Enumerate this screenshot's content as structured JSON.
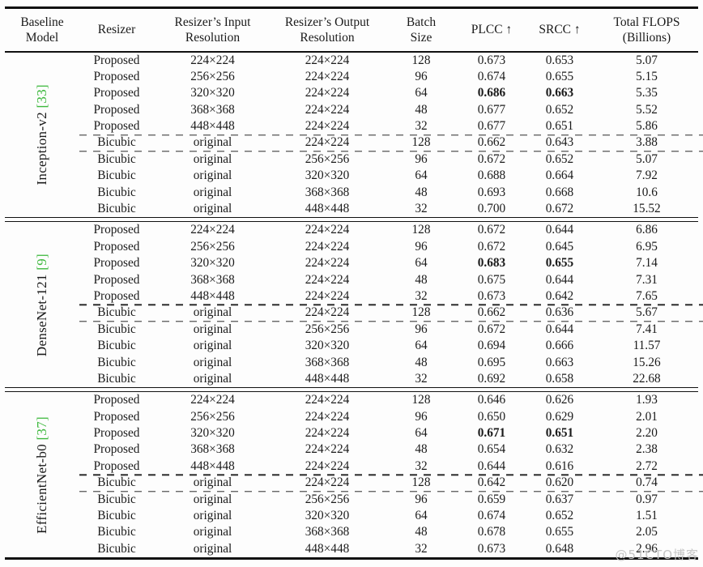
{
  "page": {
    "watermark": "@51CTO博客"
  },
  "table": {
    "header": {
      "baseline": [
        "Baseline",
        "Model"
      ],
      "resizer": [
        "Resizer"
      ],
      "input": [
        "Resizer’s Input",
        "Resolution"
      ],
      "output": [
        "Resizer’s Output",
        "Resolution"
      ],
      "batch": [
        "Batch",
        "Size"
      ],
      "plcc": [
        "PLCC ↑"
      ],
      "srcc": [
        "SRCC ↑"
      ],
      "flops": [
        "Total FLOPS",
        "(Billions)"
      ]
    },
    "accent_citation_color": "#3cb83c",
    "sections": [
      {
        "model": "Inception-v2",
        "citation": "[33]",
        "rows": [
          {
            "resizer": "Proposed",
            "input_res": "224×224",
            "output_res": "224×224",
            "batch": "128",
            "plcc": "0.673",
            "srcc": "0.653",
            "flops": "5.07",
            "bold": false,
            "dashed": false
          },
          {
            "resizer": "Proposed",
            "input_res": "256×256",
            "output_res": "224×224",
            "batch": "96",
            "plcc": "0.674",
            "srcc": "0.655",
            "flops": "5.15",
            "bold": false,
            "dashed": false
          },
          {
            "resizer": "Proposed",
            "input_res": "320×320",
            "output_res": "224×224",
            "batch": "64",
            "plcc": "0.686",
            "srcc": "0.663",
            "flops": "5.35",
            "bold": true,
            "dashed": false
          },
          {
            "resizer": "Proposed",
            "input_res": "368×368",
            "output_res": "224×224",
            "batch": "48",
            "plcc": "0.677",
            "srcc": "0.652",
            "flops": "5.52",
            "bold": false,
            "dashed": false
          },
          {
            "resizer": "Proposed",
            "input_res": "448×448",
            "output_res": "224×224",
            "batch": "32",
            "plcc": "0.677",
            "srcc": "0.651",
            "flops": "5.86",
            "bold": false,
            "dashed": false
          },
          {
            "resizer": "Bicubic",
            "input_res": "original",
            "output_res": "224×224",
            "batch": "128",
            "plcc": "0.662",
            "srcc": "0.643",
            "flops": "3.88",
            "bold": false,
            "dashed": true
          },
          {
            "resizer": "Bicubic",
            "input_res": "original",
            "output_res": "256×256",
            "batch": "96",
            "plcc": "0.672",
            "srcc": "0.652",
            "flops": "5.07",
            "bold": false,
            "dashed": false
          },
          {
            "resizer": "Bicubic",
            "input_res": "original",
            "output_res": "320×320",
            "batch": "64",
            "plcc": "0.688",
            "srcc": "0.664",
            "flops": "7.92",
            "bold": false,
            "dashed": false
          },
          {
            "resizer": "Bicubic",
            "input_res": "original",
            "output_res": "368×368",
            "batch": "48",
            "plcc": "0.693",
            "srcc": "0.668",
            "flops": "10.6",
            "bold": false,
            "dashed": false
          },
          {
            "resizer": "Bicubic",
            "input_res": "original",
            "output_res": "448×448",
            "batch": "32",
            "plcc": "0.700",
            "srcc": "0.672",
            "flops": "15.52",
            "bold": false,
            "dashed": false
          }
        ]
      },
      {
        "model": "DenseNet-121",
        "citation": "[9]",
        "rows": [
          {
            "resizer": "Proposed",
            "input_res": "224×224",
            "output_res": "224×224",
            "batch": "128",
            "plcc": "0.672",
            "srcc": "0.644",
            "flops": "6.86",
            "bold": false,
            "dashed": false
          },
          {
            "resizer": "Proposed",
            "input_res": "256×256",
            "output_res": "224×224",
            "batch": "96",
            "plcc": "0.672",
            "srcc": "0.645",
            "flops": "6.95",
            "bold": false,
            "dashed": false
          },
          {
            "resizer": "Proposed",
            "input_res": "320×320",
            "output_res": "224×224",
            "batch": "64",
            "plcc": "0.683",
            "srcc": "0.655",
            "flops": "7.14",
            "bold": true,
            "dashed": false
          },
          {
            "resizer": "Proposed",
            "input_res": "368×368",
            "output_res": "224×224",
            "batch": "48",
            "plcc": "0.675",
            "srcc": "0.644",
            "flops": "7.31",
            "bold": false,
            "dashed": false
          },
          {
            "resizer": "Proposed",
            "input_res": "448×448",
            "output_res": "224×224",
            "batch": "32",
            "plcc": "0.673",
            "srcc": "0.642",
            "flops": "7.65",
            "bold": false,
            "dashed": false
          },
          {
            "resizer": "Bicubic",
            "input_res": "original",
            "output_res": "224×224",
            "batch": "128",
            "plcc": "0.662",
            "srcc": "0.636",
            "flops": "5.67",
            "bold": false,
            "dashed": true
          },
          {
            "resizer": "Bicubic",
            "input_res": "original",
            "output_res": "256×256",
            "batch": "96",
            "plcc": "0.672",
            "srcc": "0.644",
            "flops": "7.41",
            "bold": false,
            "dashed": false
          },
          {
            "resizer": "Bicubic",
            "input_res": "original",
            "output_res": "320×320",
            "batch": "64",
            "plcc": "0.694",
            "srcc": "0.666",
            "flops": "11.57",
            "bold": false,
            "dashed": false
          },
          {
            "resizer": "Bicubic",
            "input_res": "original",
            "output_res": "368×368",
            "batch": "48",
            "plcc": "0.695",
            "srcc": "0.663",
            "flops": "15.26",
            "bold": false,
            "dashed": false
          },
          {
            "resizer": "Bicubic",
            "input_res": "original",
            "output_res": "448×448",
            "batch": "32",
            "plcc": "0.692",
            "srcc": "0.658",
            "flops": "22.68",
            "bold": false,
            "dashed": false
          }
        ]
      },
      {
        "model": "EfficientNet-b0",
        "citation": "[37]",
        "rows": [
          {
            "resizer": "Proposed",
            "input_res": "224×224",
            "output_res": "224×224",
            "batch": "128",
            "plcc": "0.646",
            "srcc": "0.626",
            "flops": "1.93",
            "bold": false,
            "dashed": false
          },
          {
            "resizer": "Proposed",
            "input_res": "256×256",
            "output_res": "224×224",
            "batch": "96",
            "plcc": "0.650",
            "srcc": "0.629",
            "flops": "2.01",
            "bold": false,
            "dashed": false
          },
          {
            "resizer": "Proposed",
            "input_res": "320×320",
            "output_res": "224×224",
            "batch": "64",
            "plcc": "0.671",
            "srcc": "0.651",
            "flops": "2.20",
            "bold": true,
            "dashed": false
          },
          {
            "resizer": "Proposed",
            "input_res": "368×368",
            "output_res": "224×224",
            "batch": "48",
            "plcc": "0.654",
            "srcc": "0.632",
            "flops": "2.38",
            "bold": false,
            "dashed": false
          },
          {
            "resizer": "Proposed",
            "input_res": "448×448",
            "output_res": "224×224",
            "batch": "32",
            "plcc": "0.644",
            "srcc": "0.616",
            "flops": "2.72",
            "bold": false,
            "dashed": false
          },
          {
            "resizer": "Bicubic",
            "input_res": "original",
            "output_res": "224×224",
            "batch": "128",
            "plcc": "0.642",
            "srcc": "0.620",
            "flops": "0.74",
            "bold": false,
            "dashed": true
          },
          {
            "resizer": "Bicubic",
            "input_res": "original",
            "output_res": "256×256",
            "batch": "96",
            "plcc": "0.659",
            "srcc": "0.637",
            "flops": "0.97",
            "bold": false,
            "dashed": false
          },
          {
            "resizer": "Bicubic",
            "input_res": "original",
            "output_res": "320×320",
            "batch": "64",
            "plcc": "0.674",
            "srcc": "0.652",
            "flops": "1.51",
            "bold": false,
            "dashed": false
          },
          {
            "resizer": "Bicubic",
            "input_res": "original",
            "output_res": "368×368",
            "batch": "48",
            "plcc": "0.678",
            "srcc": "0.655",
            "flops": "2.05",
            "bold": false,
            "dashed": false
          },
          {
            "resizer": "Bicubic",
            "input_res": "original",
            "output_res": "448×448",
            "batch": "32",
            "plcc": "0.673",
            "srcc": "0.648",
            "flops": "2.96",
            "bold": false,
            "dashed": false
          }
        ]
      }
    ]
  }
}
